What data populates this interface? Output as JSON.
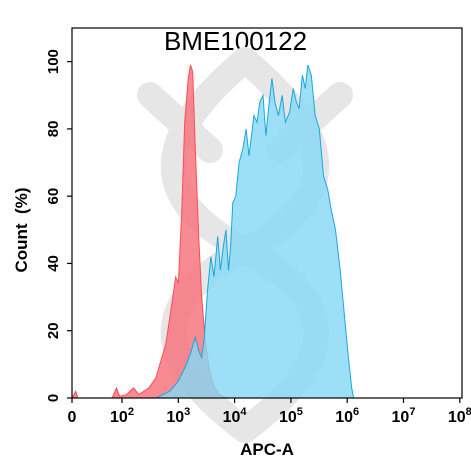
{
  "chart_data": {
    "type": "area",
    "title": "BME100122",
    "xlabel": "APC-A",
    "ylabel": "Count  (%)",
    "x_scale": "log",
    "xlim": [
      0,
      100000000
    ],
    "ylim": [
      0,
      110
    ],
    "x_ticks": [
      {
        "value": 0,
        "base": "0",
        "exp": ""
      },
      {
        "value": 100,
        "base": "10",
        "exp": "2"
      },
      {
        "value": 1000,
        "base": "10",
        "exp": "3"
      },
      {
        "value": 10000,
        "base": "10",
        "exp": "4"
      },
      {
        "value": 100000,
        "base": "10",
        "exp": "5"
      },
      {
        "value": 1000000,
        "base": "10",
        "exp": "6"
      },
      {
        "value": 10000000,
        "base": "10",
        "exp": "7"
      },
      {
        "value": 100000000,
        "base": "10",
        "exp": "8"
      }
    ],
    "y_ticks": [
      "0",
      "20",
      "40",
      "60",
      "80",
      "100"
    ],
    "grid": false,
    "watermark": "dna-helix",
    "series": [
      {
        "color": "#ff4b55",
        "fill": "#f5707a",
        "points": [
          [
            1,
            0
          ],
          [
            1.4,
            2
          ],
          [
            1.7,
            0
          ],
          [
            40,
            0
          ],
          [
            60,
            3
          ],
          [
            80,
            0.5
          ],
          [
            120,
            1
          ],
          [
            160,
            3
          ],
          [
            200,
            1
          ],
          [
            300,
            3
          ],
          [
            400,
            6
          ],
          [
            600,
            16
          ],
          [
            800,
            30
          ],
          [
            900,
            36
          ],
          [
            1000,
            34
          ],
          [
            1150,
            55
          ],
          [
            1300,
            82
          ],
          [
            1500,
            95
          ],
          [
            1650,
            99
          ],
          [
            1800,
            97
          ],
          [
            2000,
            75
          ],
          [
            2300,
            48
          ],
          [
            2600,
            30
          ],
          [
            3000,
            17
          ],
          [
            3600,
            8
          ],
          [
            4200,
            4
          ],
          [
            5000,
            1.5
          ],
          [
            6000,
            0.5
          ],
          [
            8000,
            0
          ]
        ]
      },
      {
        "color": "#1aa8dc",
        "fill": "#88d8f4",
        "points": [
          [
            400,
            0
          ],
          [
            700,
            2
          ],
          [
            1000,
            5
          ],
          [
            1400,
            10
          ],
          [
            1700,
            14
          ],
          [
            2000,
            18
          ],
          [
            2300,
            14
          ],
          [
            2600,
            12
          ],
          [
            2900,
            18
          ],
          [
            3300,
            32
          ],
          [
            3800,
            42
          ],
          [
            4300,
            36
          ],
          [
            5000,
            48
          ],
          [
            5600,
            38
          ],
          [
            6300,
            45
          ],
          [
            7000,
            50
          ],
          [
            7800,
            38
          ],
          [
            8500,
            45
          ],
          [
            9300,
            58
          ],
          [
            10500,
            60
          ],
          [
            12000,
            70
          ],
          [
            14000,
            74
          ],
          [
            16000,
            80
          ],
          [
            18000,
            72
          ],
          [
            20000,
            78
          ],
          [
            22000,
            84
          ],
          [
            25000,
            82
          ],
          [
            28000,
            88
          ],
          [
            32000,
            90
          ],
          [
            36000,
            78
          ],
          [
            40000,
            86
          ],
          [
            46000,
            95
          ],
          [
            52000,
            88
          ],
          [
            60000,
            84
          ],
          [
            70000,
            90
          ],
          [
            80000,
            82
          ],
          [
            95000,
            85
          ],
          [
            110000,
            92
          ],
          [
            125000,
            88
          ],
          [
            140000,
            86
          ],
          [
            160000,
            96
          ],
          [
            180000,
            92
          ],
          [
            200000,
            99
          ],
          [
            230000,
            96
          ],
          [
            270000,
            84
          ],
          [
            320000,
            80
          ],
          [
            380000,
            66
          ],
          [
            450000,
            62
          ],
          [
            520000,
            56
          ],
          [
            620000,
            50
          ],
          [
            750000,
            38
          ],
          [
            900000,
            24
          ],
          [
            1050000,
            12
          ],
          [
            1200000,
            3
          ],
          [
            1300000,
            0
          ]
        ]
      }
    ]
  }
}
